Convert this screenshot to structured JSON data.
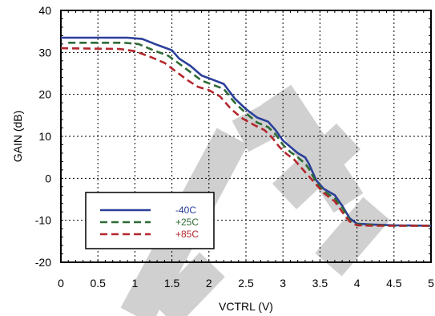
{
  "chart_data": {
    "type": "line",
    "title": "",
    "xlabel": "VCTRL (V)",
    "ylabel": "GAIN (dB)",
    "xlim": [
      0,
      5
    ],
    "ylim": [
      -20,
      40
    ],
    "x_ticks": [
      "0",
      "0.5",
      "1",
      "1.5",
      "2",
      "2.5",
      "3",
      "3.5",
      "4",
      "4.5",
      "5"
    ],
    "y_ticks": [
      "40",
      "30",
      "20",
      "10",
      "0",
      "-10",
      "-20"
    ],
    "grid": "dotted",
    "legend_position": "lower-left",
    "watermark": "PRE",
    "series": [
      {
        "name": "-40C",
        "color": "#2b3f9a",
        "dash": "solid",
        "points": [
          [
            0,
            33.5
          ],
          [
            0.9,
            33.5
          ],
          [
            1.1,
            33.2
          ],
          [
            1.3,
            31.8
          ],
          [
            1.5,
            30.5
          ],
          [
            1.6,
            28.5
          ],
          [
            1.75,
            26.8
          ],
          [
            1.9,
            24.5
          ],
          [
            2.05,
            23.5
          ],
          [
            2.2,
            22.5
          ],
          [
            2.35,
            19
          ],
          [
            2.5,
            16.5
          ],
          [
            2.65,
            14.5
          ],
          [
            2.8,
            13.5
          ],
          [
            2.9,
            11.5
          ],
          [
            3.0,
            9
          ],
          [
            3.1,
            7.5
          ],
          [
            3.2,
            6
          ],
          [
            3.3,
            5
          ],
          [
            3.35,
            3.5
          ],
          [
            3.45,
            -0.5
          ],
          [
            3.55,
            -2.5
          ],
          [
            3.7,
            -4
          ],
          [
            3.8,
            -6.5
          ],
          [
            3.9,
            -9.5
          ],
          [
            4.0,
            -10.8
          ],
          [
            4.2,
            -11
          ],
          [
            4.5,
            -11.2
          ],
          [
            5.0,
            -11.3
          ]
        ]
      },
      {
        "name": "+25C",
        "color": "#2e6b35",
        "dash": "dashed",
        "points": [
          [
            0.1,
            32.3
          ],
          [
            0.85,
            32.3
          ],
          [
            1.05,
            32
          ],
          [
            1.25,
            30.5
          ],
          [
            1.45,
            29.2
          ],
          [
            1.6,
            27.3
          ],
          [
            1.75,
            25.3
          ],
          [
            1.9,
            23.3
          ],
          [
            2.05,
            22.3
          ],
          [
            2.2,
            21.3
          ],
          [
            2.35,
            18
          ],
          [
            2.5,
            15.5
          ],
          [
            2.65,
            13.3
          ],
          [
            2.8,
            12.2
          ],
          [
            2.9,
            10.5
          ],
          [
            3.0,
            8
          ],
          [
            3.1,
            6.3
          ],
          [
            3.2,
            5
          ],
          [
            3.3,
            3.5
          ],
          [
            3.35,
            2.3
          ],
          [
            3.45,
            -1
          ],
          [
            3.55,
            -3
          ],
          [
            3.7,
            -4.8
          ],
          [
            3.8,
            -7
          ],
          [
            3.9,
            -10
          ],
          [
            4.0,
            -11
          ],
          [
            4.2,
            -11.1
          ],
          [
            4.5,
            -11.3
          ],
          [
            5.0,
            -11.3
          ]
        ]
      },
      {
        "name": "+85C",
        "color": "#b3282e",
        "dash": "dashed",
        "points": [
          [
            0,
            31
          ],
          [
            0.8,
            30.8
          ],
          [
            1.0,
            30.3
          ],
          [
            1.2,
            29
          ],
          [
            1.4,
            27.5
          ],
          [
            1.55,
            25.5
          ],
          [
            1.7,
            23.5
          ],
          [
            1.85,
            21.8
          ],
          [
            2.0,
            21
          ],
          [
            2.15,
            19.5
          ],
          [
            2.3,
            16.5
          ],
          [
            2.45,
            14.3
          ],
          [
            2.6,
            12.8
          ],
          [
            2.75,
            11.5
          ],
          [
            2.85,
            9.8
          ],
          [
            2.95,
            7.5
          ],
          [
            3.05,
            5.8
          ],
          [
            3.15,
            4.5
          ],
          [
            3.25,
            2.5
          ],
          [
            3.35,
            0.5
          ],
          [
            3.45,
            -1.5
          ],
          [
            3.55,
            -3.5
          ],
          [
            3.7,
            -5.5
          ],
          [
            3.8,
            -8
          ],
          [
            3.9,
            -10.3
          ],
          [
            4.0,
            -11.2
          ],
          [
            4.2,
            -11.3
          ],
          [
            4.5,
            -11.3
          ],
          [
            5.0,
            -11.3
          ]
        ]
      }
    ]
  }
}
